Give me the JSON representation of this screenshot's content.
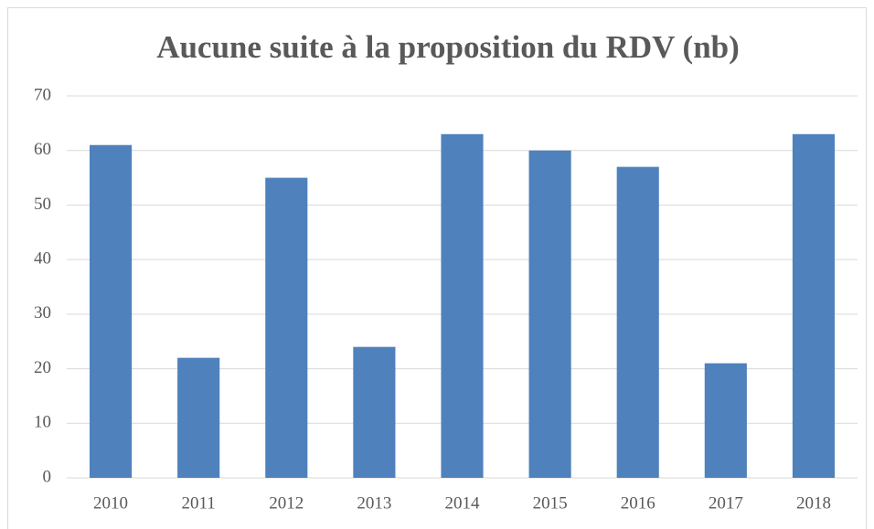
{
  "chart_data": {
    "type": "bar",
    "title": "Aucune suite à la proposition du RDV (nb)",
    "categories": [
      "2010",
      "2011",
      "2012",
      "2013",
      "2014",
      "2015",
      "2016",
      "2017",
      "2018"
    ],
    "values": [
      61,
      22,
      55,
      24,
      63,
      60,
      57,
      21,
      63
    ],
    "color": "#4f81bd",
    "ylim": [
      0,
      70
    ],
    "yticks": [
      0,
      10,
      20,
      30,
      40,
      50,
      60,
      70
    ],
    "grid": true
  }
}
